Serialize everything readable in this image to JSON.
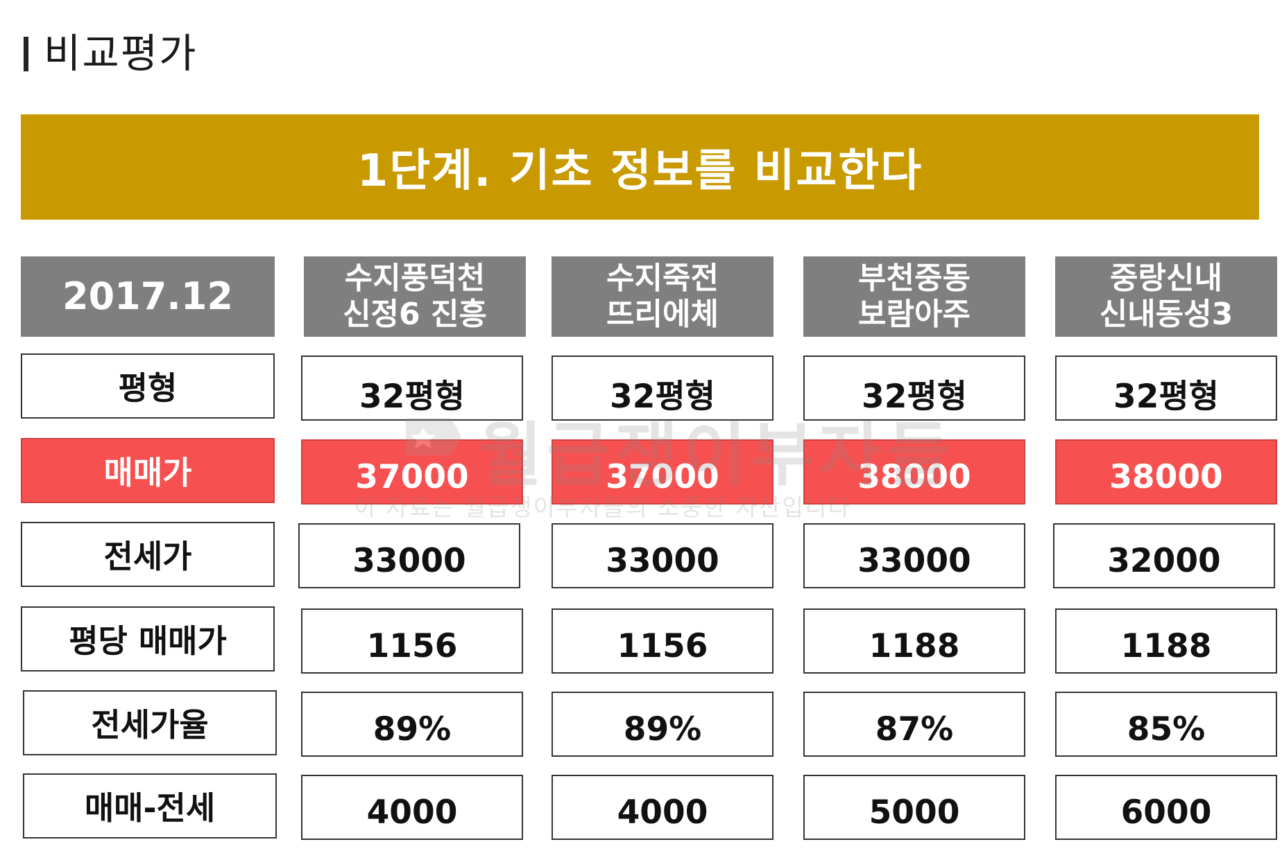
{
  "page_title": "비교평가",
  "banner": "1단계. 기초 정보를 비교한다",
  "date_header": "2017.12",
  "columns": [
    {
      "line1": "수지풍덕천",
      "line2": "신정6 진흥"
    },
    {
      "line1": "수지죽전",
      "line2": "뜨리에체"
    },
    {
      "line1": "부천중동",
      "line2": "보람아주"
    },
    {
      "line1": "중랑신내",
      "line2": "신내동성3"
    }
  ],
  "rows": [
    {
      "label": "평형",
      "values": [
        "32평형",
        "32평형",
        "32평형",
        "32평형"
      ],
      "highlight": false
    },
    {
      "label": "매매가",
      "values": [
        "37000",
        "37000",
        "38000",
        "38000"
      ],
      "highlight": true
    },
    {
      "label": "전세가",
      "values": [
        "33000",
        "33000",
        "33000",
        "32000"
      ],
      "highlight": false
    },
    {
      "label": "평당 매매가",
      "values": [
        "1156",
        "1156",
        "1188",
        "1188"
      ],
      "highlight": false
    },
    {
      "label": "전세가율",
      "values": [
        "89%",
        "89%",
        "87%",
        "85%"
      ],
      "highlight": false
    },
    {
      "label": "매매-전세",
      "values": [
        "4000",
        "4000",
        "5000",
        "6000"
      ],
      "highlight": false
    }
  ],
  "watermark": {
    "title": "월급쟁이부자들",
    "subtitle": "이 자료는 월급쟁이부자들의 소중한 자산입니다"
  },
  "colors": {
    "banner": "#C99A00",
    "header": "#7F7F7F",
    "highlight": "#F75050"
  }
}
